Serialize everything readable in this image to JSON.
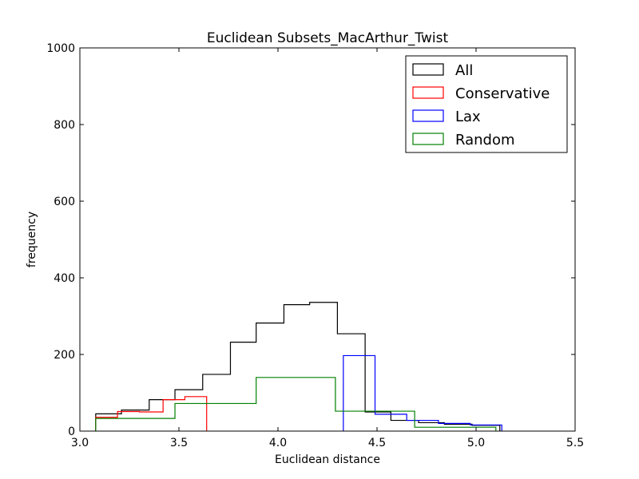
{
  "chart_data": {
    "type": "histogram",
    "title": "Euclidean Subsets_MacArthur_Twist",
    "xlabel": "Euclidean distance",
    "ylabel": "frequency",
    "xlim": [
      3.0,
      5.5
    ],
    "ylim": [
      0,
      1000
    ],
    "xticks": [
      "3.0",
      "3.5",
      "4.0",
      "4.5",
      "5.0",
      "5.5"
    ],
    "yticks": [
      "0",
      "200",
      "400",
      "600",
      "800",
      "1000"
    ],
    "grid": false,
    "legend_position": "top-right",
    "series": [
      {
        "name": "All",
        "color": "#000000",
        "edges": [
          3.08,
          3.21,
          3.35,
          3.48,
          3.62,
          3.76,
          3.89,
          4.03,
          4.16,
          4.3,
          4.44,
          4.57,
          4.71,
          4.84,
          4.98,
          5.12
        ],
        "values": [
          45,
          55,
          82,
          108,
          148,
          232,
          282,
          330,
          336,
          254,
          50,
          28,
          22,
          18,
          15
        ]
      },
      {
        "name": "Conservative",
        "color": "#ff0000",
        "edges": [
          3.08,
          3.19,
          3.3,
          3.42,
          3.53,
          3.64
        ],
        "values": [
          36,
          51,
          50,
          82,
          90
        ]
      },
      {
        "name": "Lax",
        "color": "#0000ff",
        "edges": [
          4.33,
          4.49,
          4.65,
          4.81,
          4.97,
          5.13
        ],
        "values": [
          197,
          44,
          28,
          20,
          16
        ]
      },
      {
        "name": "Random",
        "color": "#008000",
        "edges": [
          3.08,
          3.48,
          3.89,
          4.29,
          4.69,
          5.1
        ],
        "values": [
          33,
          72,
          140,
          52,
          10
        ]
      }
    ]
  }
}
